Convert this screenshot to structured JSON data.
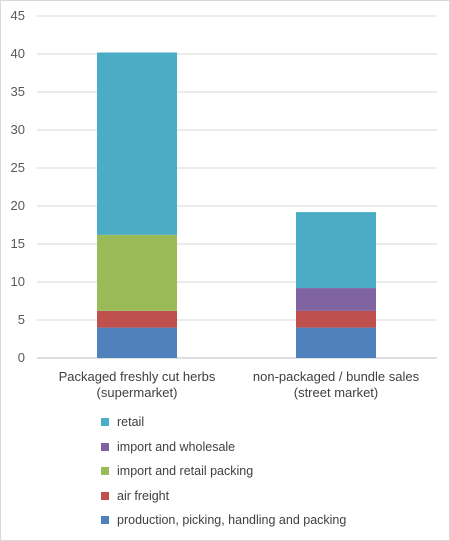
{
  "chart_data": {
    "type": "bar",
    "stacked": true,
    "categories": [
      [
        "Packaged freshly cut herbs",
        "(supermarket)"
      ],
      [
        "non-packaged / bundle sales",
        "(street market)"
      ]
    ],
    "series": [
      {
        "name": "production, picking, handling and packing",
        "color": "#4f81bd",
        "values": [
          4.0,
          4.0
        ]
      },
      {
        "name": "air freight",
        "color": "#c0504d",
        "values": [
          2.2,
          2.2
        ]
      },
      {
        "name": "import and retail packing",
        "color": "#9bbb59",
        "values": [
          10.0,
          0
        ]
      },
      {
        "name": "import and wholesale",
        "color": "#8064a2",
        "values": [
          0,
          3.0
        ]
      },
      {
        "name": "retail",
        "color": "#4bacc6",
        "values": [
          24.0,
          10.0
        ]
      }
    ],
    "ylim": [
      0,
      45
    ],
    "yticks": [
      0,
      5,
      10,
      15,
      20,
      25,
      30,
      35,
      40,
      45
    ],
    "grid": true,
    "legend_position": "bottom",
    "title": "",
    "xlabel": "",
    "ylabel": ""
  }
}
